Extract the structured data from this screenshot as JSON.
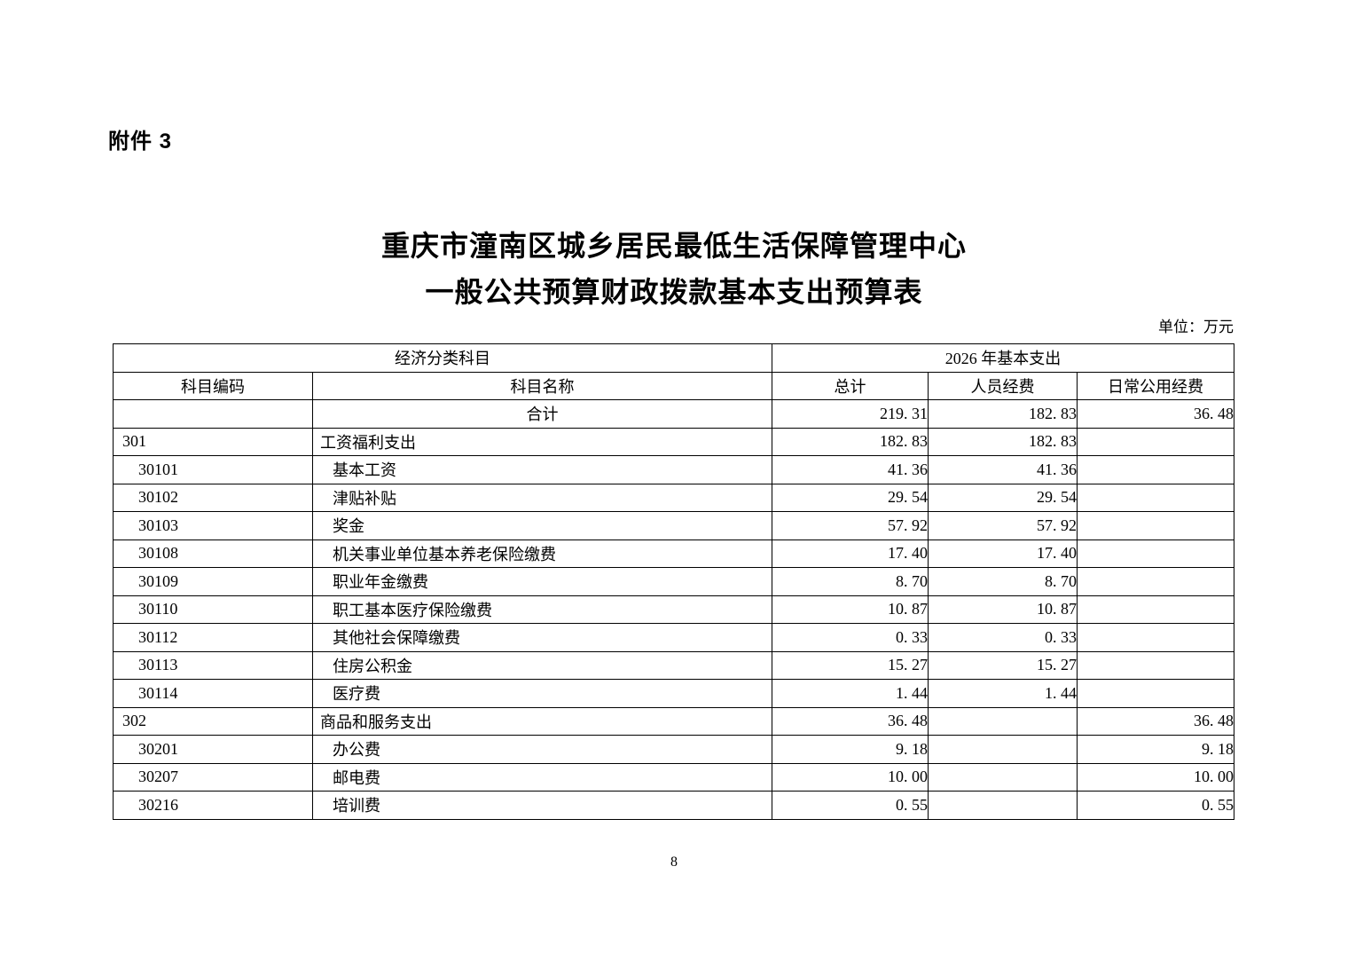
{
  "page": {
    "attachment_label": "附件 3",
    "title_line1": "重庆市潼南区城乡居民最低生活保障管理中心",
    "title_line2": "一般公共预算财政拨款基本支出预算表",
    "unit_note": "单位：万元",
    "page_number": "8"
  },
  "table": {
    "header": {
      "group_left": "经济分类科目",
      "group_right": "2026 年基本支出",
      "columns": [
        "科目编码",
        "科目名称",
        "总计",
        "人员经费",
        "日常公用经费"
      ]
    },
    "rows": [
      {
        "code": "",
        "name": "合计",
        "total": "219. 31",
        "personnel": "182. 83",
        "daily": "36. 48",
        "level": "total"
      },
      {
        "code": "301",
        "name": "工资福利支出",
        "total": "182. 83",
        "personnel": "182. 83",
        "daily": "",
        "level": "category"
      },
      {
        "code": "30101",
        "name": "基本工资",
        "total": "41. 36",
        "personnel": "41. 36",
        "daily": "",
        "level": "item"
      },
      {
        "code": "30102",
        "name": "津贴补贴",
        "total": "29. 54",
        "personnel": "29. 54",
        "daily": "",
        "level": "item"
      },
      {
        "code": "30103",
        "name": "奖金",
        "total": "57. 92",
        "personnel": "57. 92",
        "daily": "",
        "level": "item"
      },
      {
        "code": "30108",
        "name": "机关事业单位基本养老保险缴费",
        "total": "17. 40",
        "personnel": "17. 40",
        "daily": "",
        "level": "item"
      },
      {
        "code": "30109",
        "name": "职业年金缴费",
        "total": "8. 70",
        "personnel": "8. 70",
        "daily": "",
        "level": "item"
      },
      {
        "code": "30110",
        "name": "职工基本医疗保险缴费",
        "total": "10. 87",
        "personnel": "10. 87",
        "daily": "",
        "level": "item"
      },
      {
        "code": "30112",
        "name": "其他社会保障缴费",
        "total": "0. 33",
        "personnel": "0. 33",
        "daily": "",
        "level": "item"
      },
      {
        "code": "30113",
        "name": "住房公积金",
        "total": "15. 27",
        "personnel": "15. 27",
        "daily": "",
        "level": "item"
      },
      {
        "code": "30114",
        "name": "医疗费",
        "total": "1. 44",
        "personnel": "1. 44",
        "daily": "",
        "level": "item"
      },
      {
        "code": "302",
        "name": "商品和服务支出",
        "total": "36. 48",
        "personnel": "",
        "daily": "36. 48",
        "level": "category"
      },
      {
        "code": "30201",
        "name": "办公费",
        "total": "9. 18",
        "personnel": "",
        "daily": "9. 18",
        "level": "item"
      },
      {
        "code": "30207",
        "name": "邮电费",
        "total": "10. 00",
        "personnel": "",
        "daily": "10. 00",
        "level": "item"
      },
      {
        "code": "30216",
        "name": "培训费",
        "total": "0. 55",
        "personnel": "",
        "daily": "0. 55",
        "level": "item"
      }
    ]
  }
}
